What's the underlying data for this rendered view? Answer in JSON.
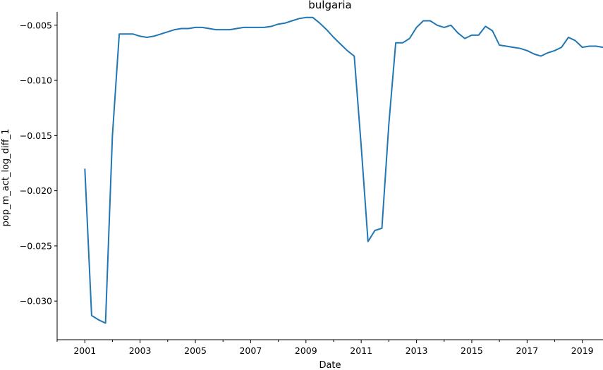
{
  "chart_data": {
    "type": "line",
    "title": "bulgaria",
    "xlabel": "Date",
    "ylabel": "pop_m_act_log_diff_1",
    "x_tick_labels": [
      "2001",
      "2003",
      "2005",
      "2007",
      "2009",
      "2011",
      "2013",
      "2015",
      "2017",
      "2019"
    ],
    "y_tick_labels": [
      "−0.005",
      "−0.010",
      "−0.015",
      "−0.020",
      "−0.025",
      "−0.030"
    ],
    "y_ticks": [
      -0.005,
      -0.01,
      -0.015,
      -0.02,
      -0.025,
      -0.03
    ],
    "xlim": [
      "2000-01-01",
      "2019-10-01"
    ],
    "ylim": [
      -0.0335,
      -0.0038
    ],
    "grid": false,
    "legend": "none",
    "colors": {
      "line": "#1f77b4",
      "axes": "#000000",
      "background": "#ffffff"
    },
    "series": [
      {
        "x": [
          "2001-01-01",
          "2001-04-01",
          "2001-07-01",
          "2001-10-01",
          "2002-01-01",
          "2002-04-01",
          "2002-07-01",
          "2002-10-01",
          "2003-01-01",
          "2003-04-01",
          "2003-07-01",
          "2003-10-01",
          "2004-01-01",
          "2004-04-01",
          "2004-07-01",
          "2004-10-01",
          "2005-01-01",
          "2005-04-01",
          "2005-07-01",
          "2005-10-01",
          "2006-01-01",
          "2006-04-01",
          "2006-07-01",
          "2006-10-01",
          "2007-01-01",
          "2007-04-01",
          "2007-07-01",
          "2007-10-01",
          "2008-01-01",
          "2008-04-01",
          "2008-07-01",
          "2008-10-01",
          "2009-01-01",
          "2009-04-01",
          "2009-07-01",
          "2009-10-01",
          "2010-01-01",
          "2010-04-01",
          "2010-07-01",
          "2010-10-01",
          "2011-01-01",
          "2011-04-01",
          "2011-07-01",
          "2011-10-01",
          "2012-01-01",
          "2012-04-01",
          "2012-07-01",
          "2012-10-01",
          "2013-01-01",
          "2013-04-01",
          "2013-07-01",
          "2013-10-01",
          "2014-01-01",
          "2014-04-01",
          "2014-07-01",
          "2014-10-01",
          "2015-01-01",
          "2015-04-01",
          "2015-07-01",
          "2015-10-01",
          "2016-01-01",
          "2016-04-01",
          "2016-07-01",
          "2016-10-01",
          "2017-01-01",
          "2017-04-01",
          "2017-07-01",
          "2017-10-01",
          "2018-01-01",
          "2018-04-01",
          "2018-07-01",
          "2018-10-01",
          "2019-01-01",
          "2019-04-01",
          "2019-07-01",
          "2019-10-01"
        ],
        "values": [
          -0.018,
          -0.0313,
          -0.0317,
          -0.032,
          -0.015,
          -0.0058,
          -0.0058,
          -0.0058,
          -0.006,
          -0.0061,
          -0.006,
          -0.0058,
          -0.0056,
          -0.0054,
          -0.0053,
          -0.0053,
          -0.0052,
          -0.0052,
          -0.0053,
          -0.0054,
          -0.0054,
          -0.0054,
          -0.0053,
          -0.0052,
          -0.0052,
          -0.0052,
          -0.0052,
          -0.0051,
          -0.0049,
          -0.0048,
          -0.0046,
          -0.0044,
          -0.0043,
          -0.0043,
          -0.0048,
          -0.0054,
          -0.0061,
          -0.0067,
          -0.0073,
          -0.0078,
          -0.016,
          -0.0246,
          -0.0236,
          -0.0234,
          -0.014,
          -0.0066,
          -0.0066,
          -0.0062,
          -0.0052,
          -0.0046,
          -0.0046,
          -0.005,
          -0.0052,
          -0.005,
          -0.0057,
          -0.0062,
          -0.0059,
          -0.0059,
          -0.0051,
          -0.0055,
          -0.0068,
          -0.0069,
          -0.007,
          -0.0071,
          -0.0073,
          -0.0076,
          -0.0078,
          -0.0075,
          -0.0073,
          -0.007,
          -0.0061,
          -0.0064,
          -0.007,
          -0.0069,
          -0.0069,
          -0.007
        ]
      }
    ]
  }
}
